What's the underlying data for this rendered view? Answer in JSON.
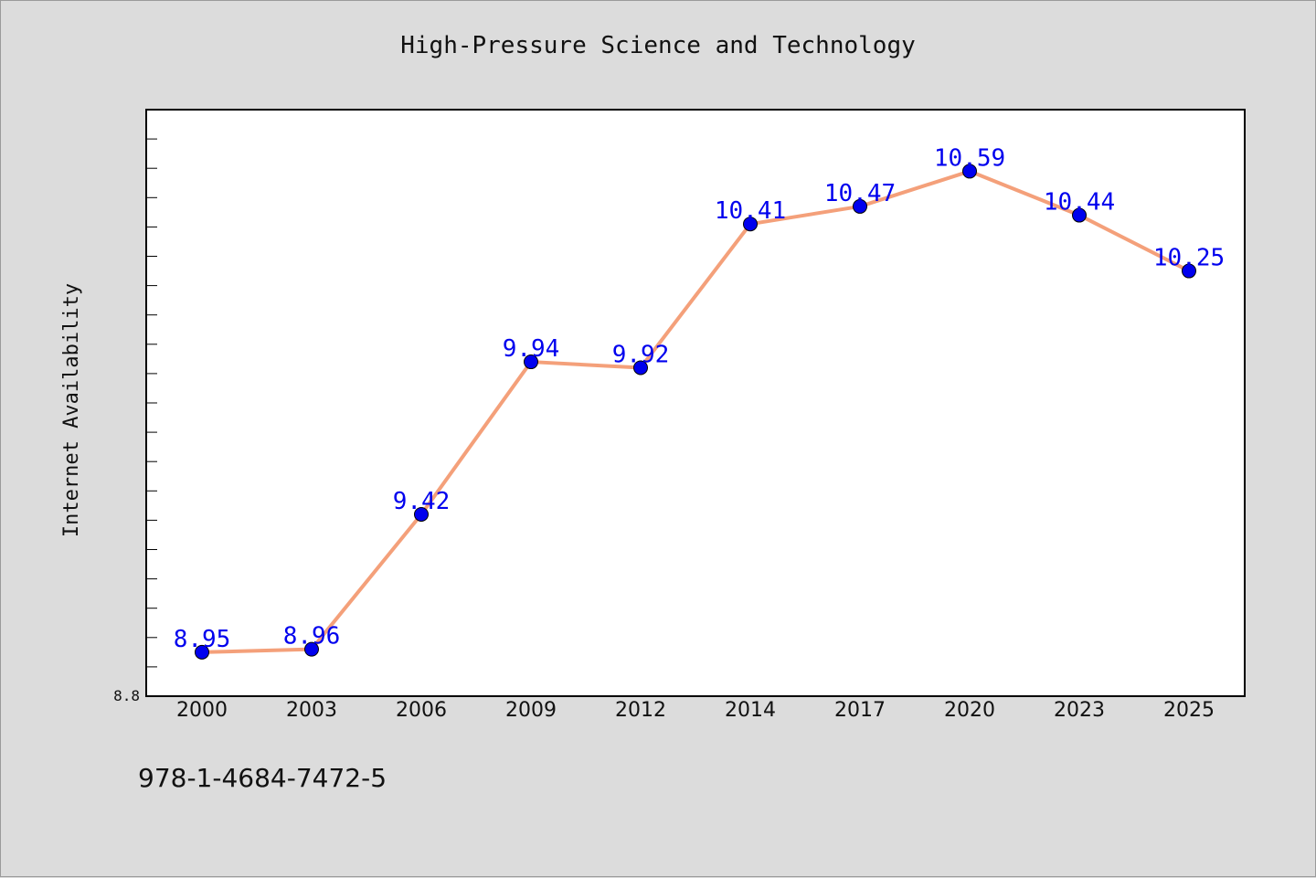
{
  "chart_data": {
    "type": "line",
    "title": "High-Pressure Science and Technology",
    "xlabel": "",
    "ylabel": "Internet Availability",
    "categories": [
      "2000",
      "2003",
      "2006",
      "2009",
      "2012",
      "2014",
      "2017",
      "2020",
      "2023",
      "2025"
    ],
    "series": [
      {
        "values": [
          8.95,
          8.96,
          9.42,
          9.94,
          9.92,
          10.41,
          10.47,
          10.59,
          10.44,
          10.25
        ],
        "color": "#f4a07a",
        "marker_color": "#0000ee"
      }
    ],
    "ylim": [
      8.8,
      10.8
    ],
    "ytick_label": "8.8",
    "data_labels": [
      "8.95",
      "8.96",
      "9.42",
      "9.94",
      "9.92",
      "10.41",
      "10.47",
      "10.59",
      "10.44",
      "10.25"
    ],
    "label_color": "#0000ee",
    "grid": false,
    "legend": "none"
  },
  "footer": {
    "code": "978-1-4684-7472-5"
  }
}
